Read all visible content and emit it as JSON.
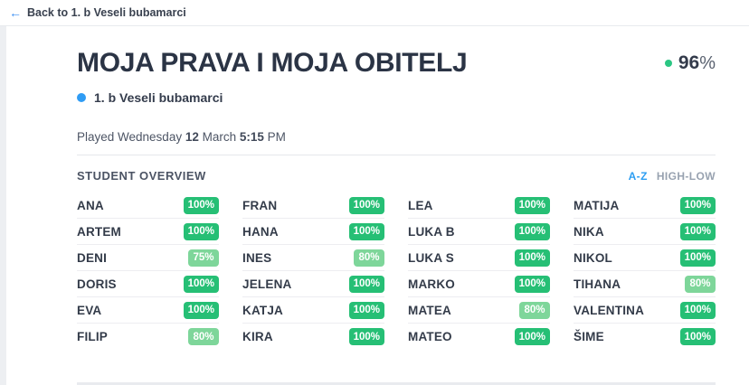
{
  "topbar": {
    "back_arrow": "←",
    "back_label": "Back to 1. b Veseli bubamarci"
  },
  "header": {
    "title": "MOJA PRAVA I MOJA OBITELJ",
    "average_score": "96",
    "percent_sign": "%",
    "class_name": "1. b Veseli bubamarci"
  },
  "played": {
    "prefix": "Played Wednesday ",
    "date": "12",
    "mid": " March ",
    "time": "5:15",
    "suffix": " PM"
  },
  "overview": {
    "heading": "STUDENT OVERVIEW",
    "sort_az": "A-Z",
    "sort_highlow": "HIGH-LOW"
  },
  "students": [
    {
      "name": "ANA",
      "score": "100%",
      "level": "high"
    },
    {
      "name": "ARTEM",
      "score": "100%",
      "level": "high"
    },
    {
      "name": "DENI",
      "score": "75%",
      "level": "mid"
    },
    {
      "name": "DORIS",
      "score": "100%",
      "level": "high"
    },
    {
      "name": "EVA",
      "score": "100%",
      "level": "high"
    },
    {
      "name": "FILIP",
      "score": "80%",
      "level": "mid"
    },
    {
      "name": "FRAN",
      "score": "100%",
      "level": "high"
    },
    {
      "name": "HANA",
      "score": "100%",
      "level": "high"
    },
    {
      "name": "INES",
      "score": "80%",
      "level": "mid"
    },
    {
      "name": "JELENA",
      "score": "100%",
      "level": "high"
    },
    {
      "name": "KATJA",
      "score": "100%",
      "level": "high"
    },
    {
      "name": "KIRA",
      "score": "100%",
      "level": "high"
    },
    {
      "name": "LEA",
      "score": "100%",
      "level": "high"
    },
    {
      "name": "LUKA B",
      "score": "100%",
      "level": "high"
    },
    {
      "name": "LUKA S",
      "score": "100%",
      "level": "high"
    },
    {
      "name": "MARKO",
      "score": "100%",
      "level": "high"
    },
    {
      "name": "MATEA",
      "score": "80%",
      "level": "mid"
    },
    {
      "name": "MATEO",
      "score": "100%",
      "level": "high"
    },
    {
      "name": "MATIJA",
      "score": "100%",
      "level": "high"
    },
    {
      "name": "NIKA",
      "score": "100%",
      "level": "high"
    },
    {
      "name": "NIKOL",
      "score": "100%",
      "level": "high"
    },
    {
      "name": "TIHANA",
      "score": "80%",
      "level": "mid"
    },
    {
      "name": "VALENTINA",
      "score": "100%",
      "level": "high"
    },
    {
      "name": "ŠIME",
      "score": "100%",
      "level": "high"
    }
  ],
  "grid": {
    "columns": 4,
    "rows_per_column": 6
  },
  "colors": {
    "score_high_green": "#26bf75",
    "score_mid_green": "#7ed69a",
    "accent_blue": "#2f9cf4",
    "average_dot_green": "#2bc683"
  }
}
